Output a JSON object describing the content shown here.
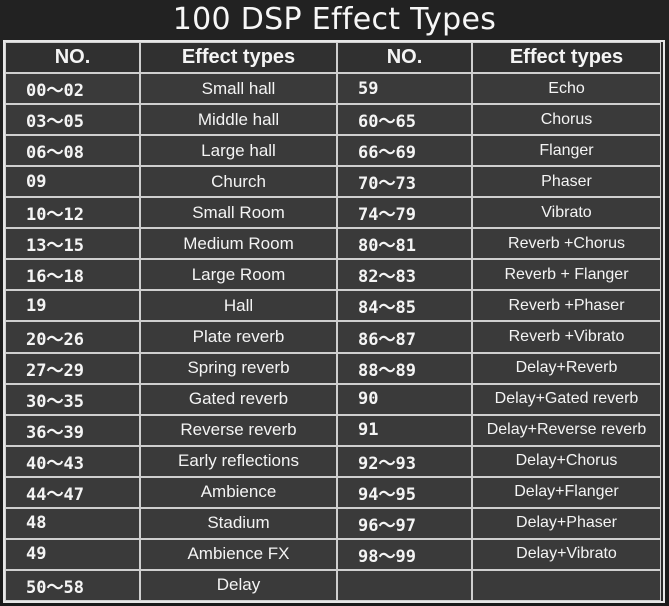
{
  "title": "100 DSP Effect Types",
  "headers": {
    "no": "NO.",
    "effect": "Effect types"
  },
  "left": [
    {
      "no": "00～02",
      "type": "Small hall"
    },
    {
      "no": "03～05",
      "type": "Middle hall"
    },
    {
      "no": "06～08",
      "type": "Large hall"
    },
    {
      "no": "09",
      "type": "Church"
    },
    {
      "no": "10～12",
      "type": "Small Room"
    },
    {
      "no": "13～15",
      "type": "Medium Room"
    },
    {
      "no": "16～18",
      "type": "Large Room"
    },
    {
      "no": "19",
      "type": "Hall"
    },
    {
      "no": "20～26",
      "type": "Plate reverb"
    },
    {
      "no": "27～29",
      "type": "Spring reverb"
    },
    {
      "no": "30～35",
      "type": "Gated reverb"
    },
    {
      "no": "36～39",
      "type": "Reverse reverb"
    },
    {
      "no": "40～43",
      "type": "Early reflections"
    },
    {
      "no": "44～47",
      "type": "Ambience"
    },
    {
      "no": "48",
      "type": "Stadium"
    },
    {
      "no": "49",
      "type": "Ambience FX"
    },
    {
      "no": "50～58",
      "type": "Delay"
    }
  ],
  "right": [
    {
      "no": "59",
      "type": "Echo"
    },
    {
      "no": "60～65",
      "type": "Chorus"
    },
    {
      "no": "66～69",
      "type": "Flanger"
    },
    {
      "no": "70～73",
      "type": "Phaser"
    },
    {
      "no": "74～79",
      "type": "Vibrato"
    },
    {
      "no": "80～81",
      "type": "Reverb +Chorus"
    },
    {
      "no": "82～83",
      "type": "Reverb + Flanger"
    },
    {
      "no": "84～85",
      "type": "Reverb +Phaser"
    },
    {
      "no": "86～87",
      "type": "Reverb +Vibrato"
    },
    {
      "no": "88～89",
      "type": "Delay+Reverb"
    },
    {
      "no": "90",
      "type": "Delay+Gated reverb"
    },
    {
      "no": "91",
      "type": "Delay+Reverse reverb"
    },
    {
      "no": "92～93",
      "type": "Delay+Chorus"
    },
    {
      "no": "94～95",
      "type": "Delay+Flanger"
    },
    {
      "no": "96～97",
      "type": "Delay+Phaser"
    },
    {
      "no": "98～99",
      "type": "Delay+Vibrato"
    },
    {
      "no": "",
      "type": ""
    }
  ]
}
